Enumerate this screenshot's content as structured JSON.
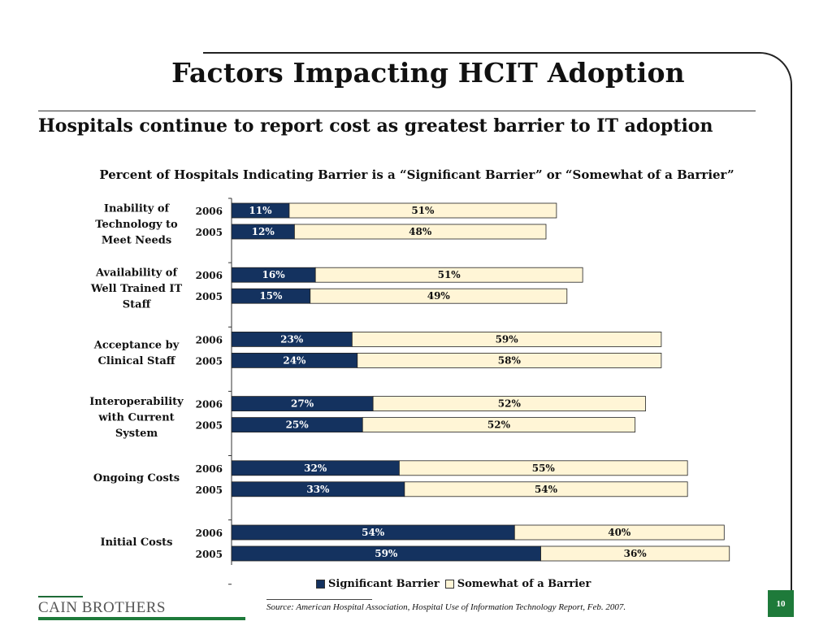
{
  "slide": {
    "title": "Factors Impacting HCIT Adoption",
    "subtitle": "Hospitals continue to report cost as greatest barrier to IT adoption",
    "source": "Source: American Hospital Association, Hospital Use of Information Technology Report, Feb. 2007.",
    "page_number": "10",
    "logo_text": "CAIN BROTHERS"
  },
  "chart_data": {
    "type": "bar",
    "orientation": "horizontal",
    "stacked": true,
    "title": "Percent of Hospitals Indicating Barrier is a “Significant Barrier” or “Somewhat of a Barrier”",
    "legend_position": "bottom",
    "grid": false,
    "colors": {
      "significant": "#14325f",
      "somewhat": "#fff5d6"
    },
    "series_names": [
      "Significant Barrier",
      "Somewhat of a Barrier"
    ],
    "groups": [
      {
        "label": "Inability of Technology to Meet Needs",
        "label_lines": [
          "Inability of",
          "Technology to",
          "Meet Needs"
        ],
        "bars": [
          {
            "year": "2006",
            "significant": 11,
            "somewhat": 51
          },
          {
            "year": "2005",
            "significant": 12,
            "somewhat": 48
          }
        ]
      },
      {
        "label": "Availability of Well Trained IT Staff",
        "label_lines": [
          "Availability of",
          "Well Trained IT",
          "Staff"
        ],
        "bars": [
          {
            "year": "2006",
            "significant": 16,
            "somewhat": 51
          },
          {
            "year": "2005",
            "significant": 15,
            "somewhat": 49
          }
        ]
      },
      {
        "label": "Acceptance by Clinical Staff",
        "label_lines": [
          "Acceptance by",
          "Clinical Staff"
        ],
        "bars": [
          {
            "year": "2006",
            "significant": 23,
            "somewhat": 59
          },
          {
            "year": "2005",
            "significant": 24,
            "somewhat": 58
          }
        ]
      },
      {
        "label": "Interoperability with Current System",
        "label_lines": [
          "Interoperability",
          "with Current",
          "System"
        ],
        "bars": [
          {
            "year": "2006",
            "significant": 27,
            "somewhat": 52
          },
          {
            "year": "2005",
            "significant": 25,
            "somewhat": 52
          }
        ]
      },
      {
        "label": "Ongoing Costs",
        "label_lines": [
          "Ongoing Costs"
        ],
        "bars": [
          {
            "year": "2006",
            "significant": 32,
            "somewhat": 55
          },
          {
            "year": "2005",
            "significant": 33,
            "somewhat": 54
          }
        ]
      },
      {
        "label": "Initial Costs",
        "label_lines": [
          "Initial Costs"
        ],
        "bars": [
          {
            "year": "2006",
            "significant": 54,
            "somewhat": 40
          },
          {
            "year": "2005",
            "significant": 59,
            "somewhat": 36
          }
        ]
      }
    ]
  }
}
